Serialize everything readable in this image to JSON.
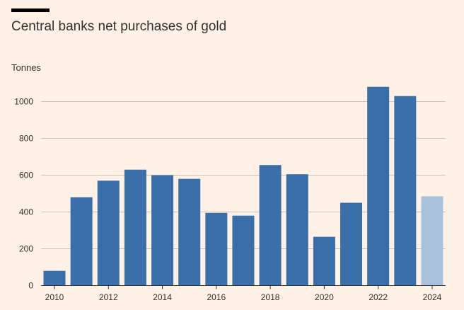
{
  "header": {
    "title": "Central banks net purchases of gold",
    "unit_label": "Tonnes"
  },
  "colors": {
    "background": "#FFF1E5",
    "bar": "#3A6EA8",
    "bar_highlight": "#A9C1DA",
    "gridline": "#CCC1B7",
    "axis": "#33302E",
    "text": "#33302E"
  },
  "chart_data": {
    "type": "bar",
    "title": "Central banks net purchases of gold",
    "ylabel": "Tonnes",
    "xlabel": "",
    "ylim": [
      0,
      1100
    ],
    "yticks": [
      0,
      200,
      400,
      600,
      800,
      1000
    ],
    "categories": [
      "2010",
      "2011",
      "2012",
      "2013",
      "2014",
      "2015",
      "2016",
      "2017",
      "2018",
      "2019",
      "2020",
      "2021",
      "2022",
      "2023",
      "2024"
    ],
    "values": [
      80,
      480,
      570,
      630,
      600,
      580,
      395,
      380,
      655,
      605,
      265,
      450,
      1080,
      1030,
      485
    ],
    "highlighted_categories": [
      "2024"
    ],
    "xtick_labels": [
      "2010",
      "2012",
      "2014",
      "2016",
      "2018",
      "2020",
      "2022",
      "2024"
    ],
    "grid": true,
    "legend": "none"
  }
}
